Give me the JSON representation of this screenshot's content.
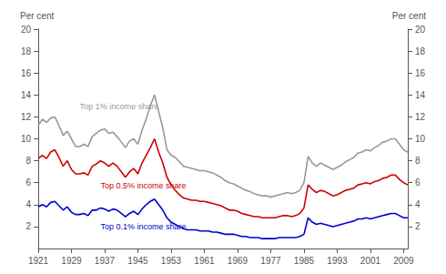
{
  "chart_data": {
    "type": "line",
    "x": [
      1921,
      1922,
      1923,
      1924,
      1925,
      1926,
      1927,
      1928,
      1929,
      1930,
      1931,
      1932,
      1933,
      1934,
      1935,
      1936,
      1937,
      1938,
      1939,
      1940,
      1941,
      1942,
      1943,
      1944,
      1945,
      1946,
      1947,
      1948,
      1949,
      1950,
      1951,
      1952,
      1953,
      1954,
      1955,
      1956,
      1957,
      1958,
      1959,
      1960,
      1961,
      1962,
      1963,
      1964,
      1965,
      1966,
      1967,
      1968,
      1969,
      1970,
      1971,
      1972,
      1973,
      1974,
      1975,
      1976,
      1977,
      1978,
      1979,
      1980,
      1981,
      1982,
      1983,
      1984,
      1985,
      1986,
      1987,
      1988,
      1989,
      1990,
      1991,
      1992,
      1993,
      1994,
      1995,
      1996,
      1997,
      1998,
      1999,
      2000,
      2001,
      2002,
      2003,
      2004,
      2005,
      2006,
      2007,
      2008,
      2009,
      2010
    ],
    "xlim": [
      1921,
      2010
    ],
    "xticks": [
      1921,
      1929,
      1937,
      1945,
      1953,
      1961,
      1969,
      1977,
      1985,
      1993,
      2001,
      2009
    ],
    "ylim": [
      0,
      20
    ],
    "yticks": [
      2,
      4,
      6,
      8,
      10,
      12,
      14,
      16,
      18,
      20
    ],
    "y2lim": [
      0,
      20
    ],
    "y2ticks": [
      2,
      4,
      6,
      8,
      10,
      12,
      14,
      16,
      18,
      20
    ],
    "ylabel": "Per cent",
    "y2label": "Per cent",
    "grid": false,
    "series": [
      {
        "color": "#999999",
        "values": [
          11.2,
          11.8,
          11.5,
          11.9,
          12.0,
          11.2,
          10.3,
          10.7,
          10.0,
          9.3,
          9.3,
          9.5,
          9.3,
          10.2,
          10.5,
          10.8,
          10.9,
          10.5,
          10.6,
          10.2,
          9.7,
          9.2,
          9.8,
          10.0,
          9.5,
          10.8,
          11.8,
          13.0,
          14.0,
          12.5,
          11.0,
          9.0,
          8.5,
          8.3,
          7.9,
          7.5,
          7.4,
          7.3,
          7.2,
          7.1,
          7.1,
          7.0,
          6.9,
          6.7,
          6.5,
          6.2,
          6.0,
          5.9,
          5.7,
          5.5,
          5.3,
          5.2,
          5.0,
          4.9,
          4.8,
          4.8,
          4.7,
          4.8,
          4.9,
          5.0,
          5.1,
          5.0,
          5.1,
          5.3,
          6.0,
          8.4,
          7.8,
          7.5,
          7.8,
          7.6,
          7.4,
          7.2,
          7.4,
          7.6,
          7.9,
          8.1,
          8.3,
          8.7,
          8.8,
          9.0,
          8.9,
          9.2,
          9.4,
          9.7,
          9.8,
          10.0,
          10.0,
          9.5,
          9.0,
          8.8
        ]
      },
      {
        "color": "#cc0000",
        "values": [
          8.2,
          8.5,
          8.2,
          8.8,
          9.0,
          8.3,
          7.5,
          8.0,
          7.2,
          6.8,
          6.8,
          6.9,
          6.7,
          7.5,
          7.7,
          8.0,
          7.8,
          7.5,
          7.8,
          7.5,
          7.0,
          6.5,
          7.0,
          7.3,
          6.8,
          7.8,
          8.5,
          9.2,
          10.0,
          8.8,
          7.8,
          6.5,
          5.8,
          5.3,
          4.9,
          4.6,
          4.5,
          4.4,
          4.4,
          4.3,
          4.3,
          4.2,
          4.1,
          4.0,
          3.9,
          3.7,
          3.5,
          3.5,
          3.4,
          3.2,
          3.1,
          3.0,
          2.9,
          2.9,
          2.8,
          2.8,
          2.8,
          2.8,
          2.9,
          3.0,
          3.0,
          2.9,
          3.0,
          3.2,
          3.7,
          5.8,
          5.4,
          5.1,
          5.3,
          5.2,
          5.0,
          4.8,
          4.9,
          5.1,
          5.3,
          5.4,
          5.5,
          5.8,
          5.9,
          6.0,
          5.9,
          6.1,
          6.2,
          6.4,
          6.5,
          6.7,
          6.7,
          6.3,
          6.0,
          5.8
        ]
      },
      {
        "color": "#0000cc",
        "values": [
          3.8,
          4.0,
          3.8,
          4.2,
          4.3,
          3.9,
          3.5,
          3.8,
          3.3,
          3.1,
          3.1,
          3.2,
          3.0,
          3.5,
          3.5,
          3.7,
          3.6,
          3.4,
          3.6,
          3.5,
          3.2,
          2.9,
          3.2,
          3.4,
          3.1,
          3.6,
          4.0,
          4.3,
          4.5,
          4.0,
          3.5,
          2.8,
          2.4,
          2.2,
          2.0,
          1.8,
          1.7,
          1.7,
          1.7,
          1.6,
          1.6,
          1.6,
          1.5,
          1.5,
          1.4,
          1.3,
          1.3,
          1.3,
          1.2,
          1.1,
          1.1,
          1.0,
          1.0,
          1.0,
          0.9,
          0.9,
          0.9,
          0.9,
          1.0,
          1.0,
          1.0,
          1.0,
          1.0,
          1.1,
          1.3,
          2.8,
          2.4,
          2.2,
          2.3,
          2.2,
          2.1,
          2.0,
          2.1,
          2.2,
          2.3,
          2.4,
          2.5,
          2.7,
          2.7,
          2.8,
          2.7,
          2.8,
          2.9,
          3.0,
          3.1,
          3.2,
          3.2,
          3.0,
          2.8,
          2.8
        ]
      }
    ],
    "annotations": [
      {
        "text": "Top 1% income share",
        "x": 1931,
        "y": 12.6,
        "color": "#999999"
      },
      {
        "text": "Top 0.5% income share",
        "x": 1936,
        "y": 5.35,
        "color": "#cc0000"
      },
      {
        "text": "Top 0.1% income share",
        "x": 1936,
        "y": 1.6,
        "color": "#0000cc"
      }
    ]
  }
}
